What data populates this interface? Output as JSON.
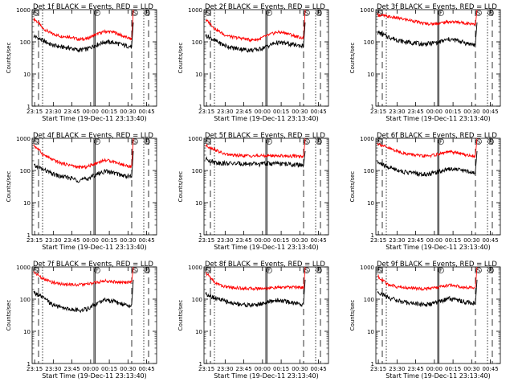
{
  "colors": {
    "events": "#000000",
    "lld": "#ff0000",
    "background": "#ffffff",
    "axes": "#000000"
  },
  "shared": {
    "xlabel": "Start Time (19-Dec-11 23:13:40)",
    "ylabel": "Counts/sec",
    "x_ticks": [
      "23:15",
      "23:30",
      "23:45",
      "00:00",
      "00:15",
      "00:30",
      "00:45"
    ],
    "y_ticks": [
      "1",
      "10",
      "100",
      "1000"
    ],
    "marker_labels": [
      "S",
      "F",
      "S",
      "E"
    ]
  },
  "chart_data": [
    {
      "type": "line",
      "title": "Det 1f BLACK = Events, RED = LLD",
      "yscale": "log",
      "ylim": [
        1,
        1000
      ],
      "series": [
        {
          "values": [
            520,
            260,
            180,
            150,
            145,
            120,
            125,
            170,
            210,
            200,
            150,
            120
          ]
        },
        {
          "values": [
            150,
            110,
            80,
            70,
            65,
            55,
            60,
            80,
            100,
            95,
            80,
            70
          ]
        }
      ]
    },
    {
      "type": "line",
      "title": "Det 2f BLACK = Events, RED = LLD",
      "yscale": "log",
      "ylim": [
        1,
        1000
      ],
      "series": [
        {
          "values": [
            480,
            260,
            170,
            140,
            130,
            115,
            120,
            160,
            200,
            190,
            150,
            130
          ]
        },
        {
          "values": [
            160,
            110,
            80,
            65,
            60,
            55,
            58,
            75,
            95,
            90,
            80,
            75
          ]
        }
      ]
    },
    {
      "type": "line",
      "title": "Det 3f BLACK = Events, RED = LLD",
      "yscale": "log",
      "ylim": [
        1,
        1000
      ],
      "series": [
        {
          "values": [
            700,
            620,
            560,
            500,
            450,
            380,
            360,
            380,
            420,
            410,
            380,
            360
          ]
        },
        {
          "values": [
            200,
            150,
            120,
            100,
            95,
            85,
            90,
            100,
            120,
            110,
            90,
            80
          ]
        }
      ]
    },
    {
      "type": "line",
      "title": "Det 4f BLACK = Events, RED = LLD",
      "yscale": "log",
      "ylim": [
        1,
        1000
      ],
      "series": [
        {
          "values": [
            600,
            320,
            220,
            170,
            150,
            125,
            130,
            170,
            210,
            190,
            150,
            130
          ]
        },
        {
          "values": [
            140,
            110,
            80,
            65,
            60,
            50,
            55,
            75,
            95,
            85,
            70,
            65
          ]
        }
      ]
    },
    {
      "type": "line",
      "title": "Det 5f BLACK = Events, RED = LLD",
      "yscale": "log",
      "ylim": [
        1,
        1000
      ],
      "series": [
        {
          "values": [
            600,
            450,
            330,
            300,
            290,
            285,
            285,
            290,
            290,
            285,
            280,
            280
          ]
        },
        {
          "values": [
            230,
            180,
            170,
            165,
            165,
            160,
            160,
            165,
            165,
            160,
            150,
            150
          ]
        }
      ]
    },
    {
      "type": "line",
      "title": "Det 6f BLACK = Events, RED = LLD",
      "yscale": "log",
      "ylim": [
        1,
        1000
      ],
      "series": [
        {
          "values": [
            700,
            520,
            420,
            340,
            310,
            280,
            290,
            330,
            380,
            360,
            300,
            280
          ]
        },
        {
          "values": [
            180,
            130,
            110,
            90,
            85,
            75,
            80,
            95,
            115,
            110,
            95,
            85
          ]
        }
      ]
    },
    {
      "type": "line",
      "title": "Det 7f BLACK = Events, RED = LLD",
      "yscale": "log",
      "ylim": [
        1,
        1000
      ],
      "series": [
        {
          "values": [
            700,
            430,
            340,
            300,
            290,
            280,
            290,
            330,
            370,
            350,
            330,
            340
          ]
        },
        {
          "values": [
            160,
            110,
            70,
            55,
            50,
            45,
            50,
            70,
            95,
            85,
            70,
            65
          ]
        }
      ]
    },
    {
      "type": "line",
      "title": "Det 8f BLACK = Events, RED = LLD",
      "yscale": "log",
      "ylim": [
        1,
        1000
      ],
      "series": [
        {
          "values": [
            650,
            330,
            250,
            230,
            220,
            215,
            215,
            220,
            230,
            235,
            240,
            230
          ]
        },
        {
          "values": [
            150,
            110,
            90,
            75,
            70,
            65,
            70,
            80,
            95,
            85,
            75,
            70
          ]
        }
      ]
    },
    {
      "type": "line",
      "title": "Det 9f BLACK = Events, RED = LLD",
      "yscale": "log",
      "ylim": [
        1,
        1000
      ],
      "series": [
        {
          "values": [
            520,
            300,
            250,
            230,
            220,
            210,
            215,
            240,
            270,
            255,
            230,
            220
          ]
        },
        {
          "values": [
            170,
            120,
            95,
            80,
            75,
            68,
            70,
            85,
            105,
            95,
            80,
            75
          ]
        }
      ]
    }
  ]
}
